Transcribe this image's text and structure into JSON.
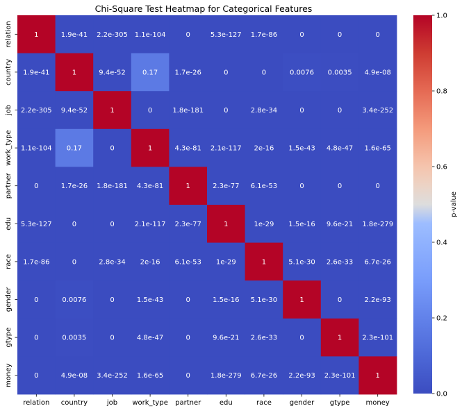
{
  "chart_data": {
    "type": "heatmap",
    "title": "Chi-Square Test Heatmap for Categorical Features",
    "xlabel": "",
    "ylabel": "",
    "rows": [
      "relation",
      "country",
      "job",
      "work_type",
      "partner",
      "edu",
      "race",
      "gender",
      "gtype",
      "money"
    ],
    "columns": [
      "relation",
      "country",
      "job",
      "work_type",
      "partner",
      "edu",
      "race",
      "gender",
      "gtype",
      "money"
    ],
    "annotations": [
      [
        "1",
        "1.9e-41",
        "2.2e-305",
        "1.1e-104",
        "0",
        "5.3e-127",
        "1.7e-86",
        "0",
        "0",
        "0"
      ],
      [
        "1.9e-41",
        "1",
        "9.4e-52",
        "0.17",
        "1.7e-26",
        "0",
        "0",
        "0.0076",
        "0.0035",
        "4.9e-08"
      ],
      [
        "2.2e-305",
        "9.4e-52",
        "1",
        "0",
        "1.8e-181",
        "0",
        "2.8e-34",
        "0",
        "0",
        "3.4e-252"
      ],
      [
        "1.1e-104",
        "0.17",
        "0",
        "1",
        "4.3e-81",
        "2.1e-117",
        "2e-16",
        "1.5e-43",
        "4.8e-47",
        "1.6e-65"
      ],
      [
        "0",
        "1.7e-26",
        "1.8e-181",
        "4.3e-81",
        "1",
        "2.3e-77",
        "6.1e-53",
        "0",
        "0",
        "0"
      ],
      [
        "5.3e-127",
        "0",
        "0",
        "2.1e-117",
        "2.3e-77",
        "1",
        "1e-29",
        "1.5e-16",
        "9.6e-21",
        "1.8e-279"
      ],
      [
        "1.7e-86",
        "0",
        "2.8e-34",
        "2e-16",
        "6.1e-53",
        "1e-29",
        "1",
        "5.1e-30",
        "2.6e-33",
        "6.7e-26"
      ],
      [
        "0",
        "0.0076",
        "0",
        "1.5e-43",
        "0",
        "1.5e-16",
        "5.1e-30",
        "1",
        "0",
        "2.2e-93"
      ],
      [
        "0",
        "0.0035",
        "0",
        "4.8e-47",
        "0",
        "9.6e-21",
        "2.6e-33",
        "0",
        "1",
        "2.3e-101"
      ],
      [
        "0",
        "4.9e-08",
        "3.4e-252",
        "1.6e-65",
        "0",
        "1.8e-279",
        "6.7e-26",
        "2.2e-93",
        "2.3e-101",
        "1"
      ]
    ],
    "colorbar": {
      "label": "p-value",
      "range": [
        0.0,
        1.0
      ],
      "ticks": [
        "0.0",
        "0.2",
        "0.4",
        "0.6",
        "0.8",
        "1.0"
      ],
      "colormap": "coolwarm"
    },
    "colors": {
      "low": "#3b4cc0",
      "mid": "#dddddd",
      "high": "#b40426"
    },
    "grid": false,
    "legend": "colorbar-right"
  }
}
